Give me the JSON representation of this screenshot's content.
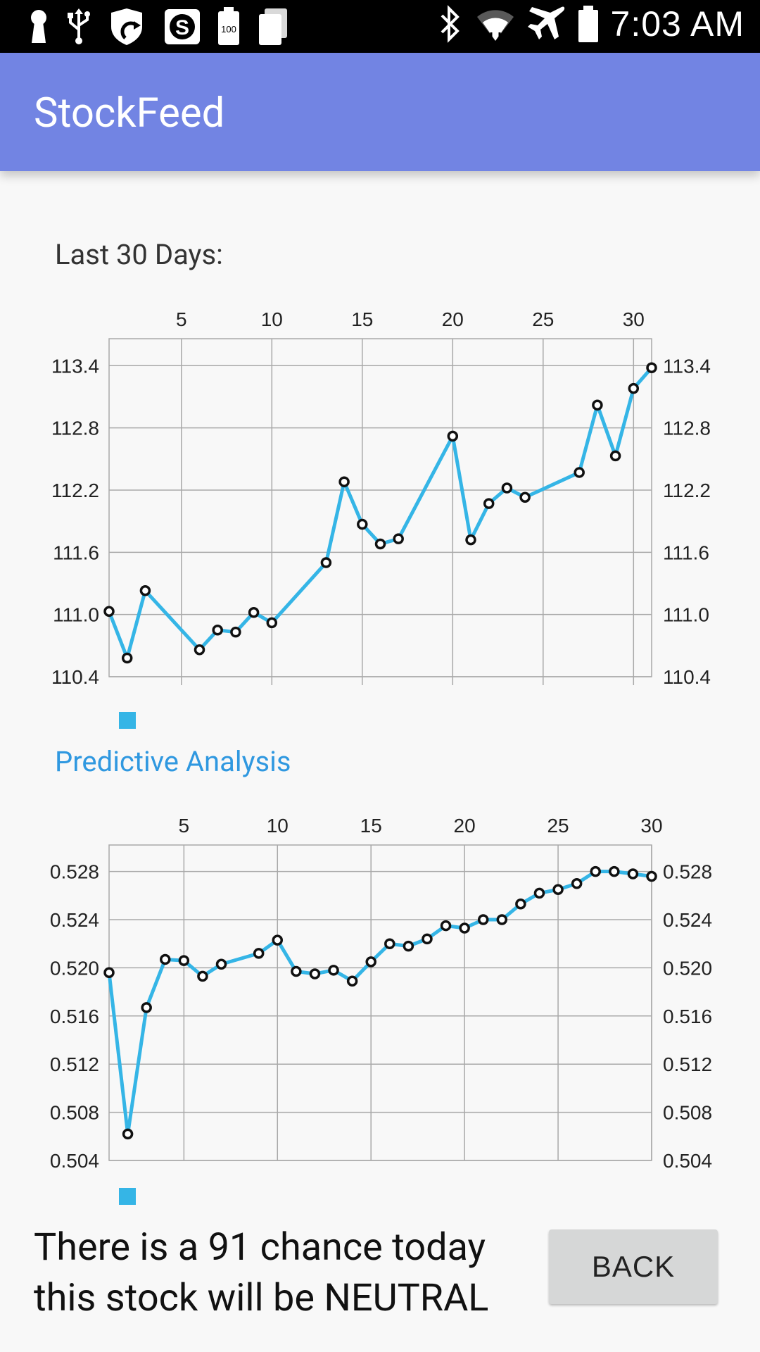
{
  "status_bar": {
    "time": "7:03 AM",
    "left_icons": [
      "keyhole-icon",
      "usb-icon",
      "shield-sync-icon",
      "dollar-app-icon",
      "battery-100-icon",
      "cards-icon"
    ],
    "right_icons": [
      "bluetooth-icon",
      "wifi-icon",
      "airplane-icon",
      "battery-icon"
    ]
  },
  "app_bar": {
    "title": "StockFeed",
    "color": "#7284e3"
  },
  "sections": {
    "history_label": "Last 30 Days:",
    "prediction_label": "Predictive Analysis"
  },
  "message": {
    "line1": "There is a 91 chance today",
    "line2": "this stock will be NEUTRAL"
  },
  "back_button": {
    "label": "BACK"
  },
  "colors": {
    "series": "#35b5e6",
    "label_accent": "#2f98e0"
  },
  "chart_data": [
    {
      "type": "line",
      "title": "",
      "xlabel": "",
      "ylabel": "",
      "xlim": [
        1,
        31
      ],
      "ylim": [
        110.4,
        113.66
      ],
      "x_ticks": [
        5,
        10,
        15,
        20,
        25,
        30
      ],
      "y_ticks": [
        110.4,
        111.0,
        111.6,
        112.2,
        112.8,
        113.4
      ],
      "y_tick_labels": [
        "110.4",
        "111.0",
        "111.6",
        "112.2",
        "112.8",
        "113.4"
      ],
      "grid": true,
      "legend": "bottom-left",
      "series": [
        {
          "color": "#35b5e6",
          "points": [
            [
              1,
              111.03
            ],
            [
              2,
              110.58
            ],
            [
              3,
              111.23
            ],
            [
              6,
              110.66
            ],
            [
              7,
              110.85
            ],
            [
              8,
              110.83
            ],
            [
              9,
              111.02
            ],
            [
              10,
              110.92
            ],
            [
              13,
              111.5
            ],
            [
              14,
              112.28
            ],
            [
              15,
              111.87
            ],
            [
              16,
              111.68
            ],
            [
              17,
              111.73
            ],
            [
              20,
              112.72
            ],
            [
              21,
              111.72
            ],
            [
              22,
              112.07
            ],
            [
              23,
              112.22
            ],
            [
              24,
              112.13
            ],
            [
              27,
              112.37
            ],
            [
              28,
              113.02
            ],
            [
              29,
              112.53
            ],
            [
              30,
              113.18
            ],
            [
              31,
              113.38
            ]
          ]
        }
      ]
    },
    {
      "type": "line",
      "title": "",
      "xlabel": "",
      "ylabel": "",
      "xlim": [
        1,
        30
      ],
      "ylim": [
        0.504,
        0.5302
      ],
      "x_ticks": [
        5,
        10,
        15,
        20,
        25,
        30
      ],
      "y_ticks": [
        0.504,
        0.508,
        0.512,
        0.516,
        0.52,
        0.524,
        0.528
      ],
      "y_tick_labels": [
        "0.504",
        "0.508",
        "0.512",
        "0.516",
        "0.520",
        "0.524",
        "0.528"
      ],
      "grid": true,
      "legend": "bottom-left",
      "series": [
        {
          "color": "#35b5e6",
          "points": [
            [
              1,
              0.5196
            ],
            [
              2,
              0.5062
            ],
            [
              3,
              0.5167
            ],
            [
              4,
              0.5207
            ],
            [
              5,
              0.5206
            ],
            [
              6,
              0.5193
            ],
            [
              7,
              0.5203
            ],
            [
              9,
              0.5212
            ],
            [
              10,
              0.5223
            ],
            [
              11,
              0.5197
            ],
            [
              12,
              0.5195
            ],
            [
              13,
              0.5198
            ],
            [
              14,
              0.5189
            ],
            [
              15,
              0.5205
            ],
            [
              16,
              0.522
            ],
            [
              17,
              0.5218
            ],
            [
              18,
              0.5224
            ],
            [
              19,
              0.5235
            ],
            [
              20,
              0.5233
            ],
            [
              21,
              0.524
            ],
            [
              22,
              0.524
            ],
            [
              23,
              0.5253
            ],
            [
              24,
              0.5262
            ],
            [
              25,
              0.5265
            ],
            [
              26,
              0.527
            ],
            [
              27,
              0.528
            ],
            [
              28,
              0.528
            ],
            [
              29,
              0.5278
            ],
            [
              30,
              0.5276
            ]
          ]
        }
      ]
    }
  ]
}
